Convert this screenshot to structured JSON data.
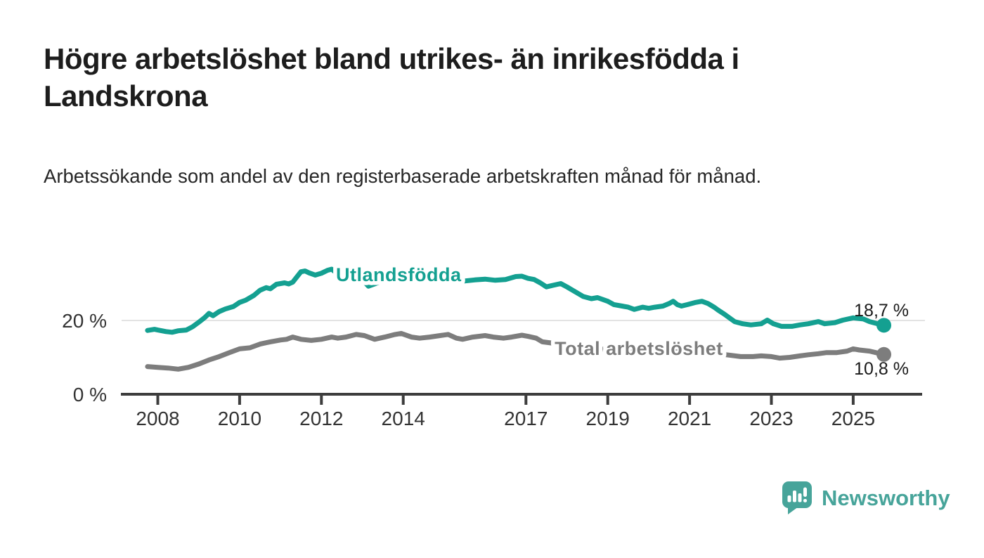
{
  "header": {
    "title": "Högre arbetslöshet bland utrikes- än inrikesfödda i Landskrona",
    "subtitle": "Arbetssökande som andel av den registerbaserade arbetskraften månad för månad."
  },
  "chart_data": {
    "type": "line",
    "title": "Högre arbetslöshet bland utrikes- än inrikesfödda i Landskrona",
    "xlabel": "",
    "ylabel": "Arbetssökande som andel av den registerbaserade arbetskraften",
    "unit": "%",
    "ylim": [
      0,
      36
    ],
    "xlim": [
      2007.6,
      2026.6
    ],
    "grid": "single-horizontal-gridline-at-20",
    "legend_position": "inline-labels-on-lines",
    "x_ticks": [
      {
        "year": 2008,
        "label": "2008"
      },
      {
        "year": 2010,
        "label": "2010"
      },
      {
        "year": 2012,
        "label": "2012"
      },
      {
        "year": 2014,
        "label": "2014"
      },
      {
        "year": 2017,
        "label": "2017"
      },
      {
        "year": 2019,
        "label": "2019"
      },
      {
        "year": 2021,
        "label": "2021"
      },
      {
        "year": 2023,
        "label": "2023"
      },
      {
        "year": 2025,
        "label": "2025"
      }
    ],
    "y_gridlines": [
      {
        "value": 20,
        "label": "20 %",
        "line": true
      },
      {
        "value": 0,
        "label": "0 %",
        "line": false
      }
    ],
    "series": [
      {
        "name": "Utlandsfödda",
        "color": "#14a091",
        "end_label": "18,7 %",
        "end_value": 18.7,
        "label_anchor": {
          "year": 2013.89,
          "value": 32.4
        },
        "points": [
          [
            2007.75,
            17.3
          ],
          [
            2007.92,
            17.6
          ],
          [
            2008.0,
            17.4
          ],
          [
            2008.2,
            17.0
          ],
          [
            2008.35,
            16.8
          ],
          [
            2008.5,
            17.2
          ],
          [
            2008.7,
            17.4
          ],
          [
            2008.85,
            18.3
          ],
          [
            2009.0,
            19.5
          ],
          [
            2009.15,
            20.8
          ],
          [
            2009.25,
            21.9
          ],
          [
            2009.35,
            21.3
          ],
          [
            2009.5,
            22.4
          ],
          [
            2009.65,
            23.1
          ],
          [
            2009.85,
            23.8
          ],
          [
            2010.0,
            24.9
          ],
          [
            2010.15,
            25.5
          ],
          [
            2010.35,
            26.8
          ],
          [
            2010.5,
            28.2
          ],
          [
            2010.65,
            28.9
          ],
          [
            2010.75,
            28.6
          ],
          [
            2010.9,
            29.8
          ],
          [
            2011.1,
            30.2
          ],
          [
            2011.2,
            29.9
          ],
          [
            2011.3,
            30.4
          ],
          [
            2011.4,
            31.8
          ],
          [
            2011.5,
            33.2
          ],
          [
            2011.6,
            33.4
          ],
          [
            2011.7,
            32.9
          ],
          [
            2011.85,
            32.3
          ],
          [
            2012.0,
            32.8
          ],
          [
            2012.15,
            33.6
          ],
          [
            2012.25,
            33.9
          ],
          [
            2012.4,
            32.6
          ],
          [
            2012.6,
            32.2
          ],
          [
            2012.75,
            32.5
          ],
          [
            2012.9,
            32.0
          ],
          [
            2013.05,
            30.5
          ],
          [
            2013.15,
            29.3
          ],
          [
            2013.3,
            29.9
          ],
          [
            2013.5,
            30.8
          ],
          [
            2013.75,
            31.2
          ],
          [
            2014.0,
            31.0
          ],
          [
            2014.25,
            30.6
          ],
          [
            2014.5,
            30.9
          ],
          [
            2014.75,
            31.1
          ],
          [
            2015.0,
            30.8
          ],
          [
            2015.25,
            31.0
          ],
          [
            2015.5,
            30.7
          ],
          [
            2015.75,
            31.0
          ],
          [
            2016.0,
            31.2
          ],
          [
            2016.25,
            30.9
          ],
          [
            2016.5,
            31.1
          ],
          [
            2016.75,
            31.9
          ],
          [
            2016.9,
            32.0
          ],
          [
            2017.05,
            31.4
          ],
          [
            2017.2,
            31.1
          ],
          [
            2017.35,
            30.2
          ],
          [
            2017.5,
            29.1
          ],
          [
            2017.65,
            29.5
          ],
          [
            2017.85,
            30.0
          ],
          [
            2018.0,
            29.1
          ],
          [
            2018.2,
            27.8
          ],
          [
            2018.4,
            26.5
          ],
          [
            2018.6,
            25.9
          ],
          [
            2018.75,
            26.2
          ],
          [
            2019.0,
            25.2
          ],
          [
            2019.15,
            24.3
          ],
          [
            2019.35,
            23.9
          ],
          [
            2019.5,
            23.6
          ],
          [
            2019.65,
            23.0
          ],
          [
            2019.85,
            23.6
          ],
          [
            2020.0,
            23.3
          ],
          [
            2020.15,
            23.6
          ],
          [
            2020.35,
            23.9
          ],
          [
            2020.5,
            24.6
          ],
          [
            2020.6,
            25.2
          ],
          [
            2020.7,
            24.3
          ],
          [
            2020.8,
            23.9
          ],
          [
            2020.95,
            24.3
          ],
          [
            2021.15,
            24.9
          ],
          [
            2021.3,
            25.2
          ],
          [
            2021.45,
            24.6
          ],
          [
            2021.6,
            23.6
          ],
          [
            2021.7,
            22.8
          ],
          [
            2021.85,
            21.7
          ],
          [
            2022.1,
            19.7
          ],
          [
            2022.3,
            19.1
          ],
          [
            2022.5,
            18.8
          ],
          [
            2022.75,
            19.1
          ],
          [
            2022.9,
            20.1
          ],
          [
            2023.05,
            19.1
          ],
          [
            2023.25,
            18.4
          ],
          [
            2023.5,
            18.4
          ],
          [
            2023.7,
            18.8
          ],
          [
            2023.9,
            19.1
          ],
          [
            2024.15,
            19.7
          ],
          [
            2024.3,
            19.1
          ],
          [
            2024.55,
            19.4
          ],
          [
            2024.75,
            20.1
          ],
          [
            2025.0,
            20.7
          ],
          [
            2025.25,
            20.4
          ],
          [
            2025.4,
            19.7
          ],
          [
            2025.6,
            19.1
          ],
          [
            2025.75,
            18.7
          ]
        ]
      },
      {
        "name": "Total arbetslöshet",
        "color": "#7d7d7d",
        "end_label": "10,8 %",
        "end_value": 10.8,
        "label_anchor": {
          "year": 2019.76,
          "value": 12.35
        },
        "points": [
          [
            2007.75,
            7.5
          ],
          [
            2008.0,
            7.3
          ],
          [
            2008.25,
            7.1
          ],
          [
            2008.5,
            6.8
          ],
          [
            2008.75,
            7.3
          ],
          [
            2009.0,
            8.2
          ],
          [
            2009.25,
            9.3
          ],
          [
            2009.5,
            10.2
          ],
          [
            2009.75,
            11.3
          ],
          [
            2010.0,
            12.3
          ],
          [
            2010.25,
            12.6
          ],
          [
            2010.5,
            13.6
          ],
          [
            2010.75,
            14.2
          ],
          [
            2011.0,
            14.7
          ],
          [
            2011.15,
            14.9
          ],
          [
            2011.3,
            15.5
          ],
          [
            2011.5,
            14.9
          ],
          [
            2011.75,
            14.6
          ],
          [
            2012.0,
            14.9
          ],
          [
            2012.25,
            15.5
          ],
          [
            2012.4,
            15.2
          ],
          [
            2012.6,
            15.5
          ],
          [
            2012.85,
            16.2
          ],
          [
            2013.05,
            15.9
          ],
          [
            2013.3,
            14.9
          ],
          [
            2013.55,
            15.5
          ],
          [
            2013.8,
            16.2
          ],
          [
            2013.95,
            16.5
          ],
          [
            2014.2,
            15.5
          ],
          [
            2014.4,
            15.2
          ],
          [
            2014.65,
            15.5
          ],
          [
            2014.9,
            15.9
          ],
          [
            2015.1,
            16.2
          ],
          [
            2015.3,
            15.2
          ],
          [
            2015.45,
            14.9
          ],
          [
            2015.7,
            15.5
          ],
          [
            2016.0,
            15.9
          ],
          [
            2016.2,
            15.5
          ],
          [
            2016.45,
            15.2
          ],
          [
            2016.65,
            15.5
          ],
          [
            2016.9,
            16.0
          ],
          [
            2017.05,
            15.7
          ],
          [
            2017.25,
            15.2
          ],
          [
            2017.4,
            14.2
          ],
          [
            2017.7,
            13.8
          ],
          [
            2018.0,
            13.3
          ],
          [
            2018.5,
            12.6
          ],
          [
            2019.0,
            12.1
          ],
          [
            2019.5,
            11.7
          ],
          [
            2020.0,
            11.9
          ],
          [
            2020.5,
            12.4
          ],
          [
            2021.0,
            12.2
          ],
          [
            2021.5,
            11.4
          ],
          [
            2021.9,
            10.7
          ],
          [
            2022.25,
            10.2
          ],
          [
            2022.55,
            10.2
          ],
          [
            2022.75,
            10.4
          ],
          [
            2023.0,
            10.2
          ],
          [
            2023.2,
            9.8
          ],
          [
            2023.45,
            10.0
          ],
          [
            2023.7,
            10.4
          ],
          [
            2023.9,
            10.7
          ],
          [
            2024.15,
            11.0
          ],
          [
            2024.35,
            11.3
          ],
          [
            2024.6,
            11.3
          ],
          [
            2024.85,
            11.7
          ],
          [
            2025.0,
            12.3
          ],
          [
            2025.15,
            12.0
          ],
          [
            2025.4,
            11.7
          ],
          [
            2025.55,
            11.3
          ],
          [
            2025.75,
            10.8
          ]
        ]
      }
    ]
  },
  "footer": {
    "brand": "Newsworthy"
  },
  "colors": {
    "accent_teal": "#14a091",
    "series_gray": "#7d7d7d",
    "axis": "#3d3d3d",
    "tick_label": "#333333",
    "gridline": "#e3e3e3",
    "value_label": "#1a1a1a",
    "logo_teal": "#47a49a",
    "background": "#ffffff"
  }
}
